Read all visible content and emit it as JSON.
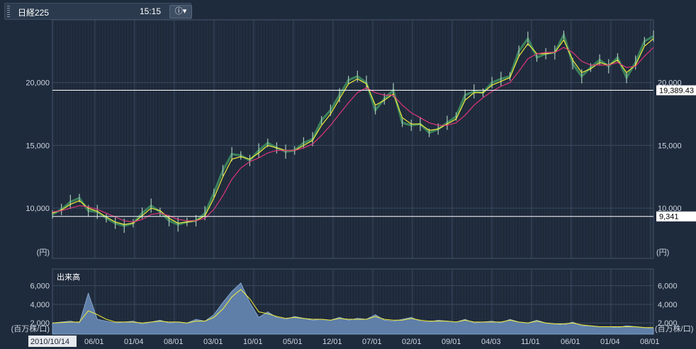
{
  "header": {
    "title": "日経225",
    "time": "15:15",
    "menu_icon": "info-dropdown-icon"
  },
  "colors": {
    "background": "#1e2b3c",
    "plot": "#1f2a3a",
    "grid": "#3a4a60",
    "ma_short": "#f2ee3a",
    "ma_long": "#e0357a",
    "volume_fill": "#5f7fa8"
  },
  "chart_data": [
    {
      "type": "line",
      "title": "",
      "ylabel": "(円)",
      "ylim": [
        6000,
        25000
      ],
      "y_ticks": [
        "20,000",
        "15,000",
        "10,000"
      ],
      "y_tick_values": [
        20000,
        15000,
        10000
      ],
      "x_ticks": [
        "2010/10/14",
        "06/01",
        "01/04",
        "08/01",
        "03/01",
        "10/01",
        "05/01",
        "12/01",
        "07/01",
        "02/01",
        "09/01",
        "04/03",
        "11/01",
        "06/01",
        "01/04",
        "08/01"
      ],
      "reference_lines": [
        {
          "label": "19,389.43",
          "value": 19389.43,
          "color": "#ffffff"
        },
        {
          "label": "9,341",
          "value": 9341,
          "color": "#ffffff"
        }
      ],
      "series": [
        {
          "name": "",
          "style": "price",
          "values": [
            9500,
            9900,
            10500,
            10800,
            9800,
            9700,
            9200,
            8800,
            8600,
            8800,
            9600,
            10200,
            9700,
            9000,
            8700,
            8900,
            9000,
            9600,
            11200,
            13000,
            14300,
            14200,
            13800,
            14600,
            15200,
            14800,
            14500,
            14600,
            15200,
            15500,
            17000,
            17800,
            19000,
            20200,
            20500,
            20000,
            17800,
            18700,
            19400,
            16800,
            16600,
            16700,
            16000,
            16300,
            16800,
            17300,
            19000,
            19300,
            19200,
            20000,
            20300,
            20500,
            22500,
            23500,
            22000,
            22300,
            22400,
            23800,
            21500,
            20500,
            21200,
            21800,
            21300,
            22000,
            20400,
            21600,
            23300,
            23700
          ]
        },
        {
          "name": "",
          "style": "ma-short",
          "values": [
            9600,
            9850,
            10300,
            10600,
            10000,
            9750,
            9300,
            8900,
            8700,
            8800,
            9400,
            10000,
            9800,
            9200,
            8800,
            8900,
            9000,
            9400,
            10800,
            12500,
            13900,
            14100,
            13900,
            14400,
            15000,
            14800,
            14600,
            14600,
            15000,
            15400,
            16600,
            17500,
            18700,
            19900,
            20300,
            19900,
            18200,
            18600,
            19100,
            17200,
            16700,
            16700,
            16200,
            16300,
            16700,
            17100,
            18600,
            19200,
            19200,
            19800,
            20100,
            20400,
            22100,
            23100,
            22300,
            22300,
            22400,
            23400,
            21800,
            20800,
            21100,
            21600,
            21400,
            21800,
            20800,
            21400,
            22900,
            23500
          ]
        },
        {
          "name": "",
          "style": "ma-long",
          "values": [
            9700,
            9800,
            10000,
            10200,
            10100,
            9900,
            9600,
            9300,
            9000,
            8900,
            9100,
            9500,
            9600,
            9400,
            9100,
            9000,
            9000,
            9200,
            9900,
            11000,
            12300,
            13200,
            13700,
            14000,
            14400,
            14600,
            14600,
            14600,
            14800,
            15100,
            15800,
            16600,
            17500,
            18400,
            19200,
            19600,
            19200,
            19000,
            19000,
            18200,
            17600,
            17200,
            16800,
            16600,
            16600,
            16800,
            17400,
            18200,
            18800,
            19300,
            19700,
            20000,
            20900,
            21900,
            22300,
            22400,
            22400,
            22800,
            22400,
            21700,
            21400,
            21400,
            21400,
            21600,
            21200,
            21300,
            22100,
            22800
          ]
        }
      ]
    },
    {
      "type": "area",
      "title": "出来高",
      "ylabel": "(百万株/口)",
      "ylim": [
        800,
        7800
      ],
      "y_ticks": [
        "6,000",
        "4,000",
        "2,000"
      ],
      "y_tick_values": [
        6000,
        4000,
        2000
      ],
      "series": [
        {
          "name": "",
          "style": "volume",
          "values": [
            2000,
            2100,
            2200,
            2000,
            5200,
            2400,
            2200,
            2000,
            2100,
            2200,
            1900,
            2100,
            2300,
            2000,
            2100,
            2000,
            2400,
            2200,
            2900,
            4200,
            5400,
            6300,
            4200,
            2600,
            3200,
            2600,
            2400,
            2700,
            2500,
            2300,
            2400,
            2300,
            2600,
            2300,
            2500,
            2400,
            2900,
            2300,
            2200,
            2400,
            2600,
            2200,
            2100,
            2300,
            2200,
            2100,
            2400,
            2000,
            2100,
            2200,
            2000,
            2400,
            2100,
            2000,
            2300,
            2000,
            1900,
            1800,
            2100,
            1700,
            1700,
            1600,
            1600,
            1500,
            1700,
            1600,
            1500,
            1400
          ]
        },
        {
          "name": "",
          "style": "ma-short",
          "values": [
            2000,
            2050,
            2100,
            2100,
            3300,
            2900,
            2400,
            2100,
            2100,
            2100,
            2000,
            2100,
            2200,
            2100,
            2100,
            2000,
            2200,
            2200,
            2600,
            3500,
            4800,
            5600,
            4600,
            3200,
            3000,
            2700,
            2500,
            2600,
            2500,
            2400,
            2400,
            2300,
            2500,
            2400,
            2400,
            2400,
            2700,
            2400,
            2300,
            2300,
            2500,
            2300,
            2200,
            2200,
            2200,
            2100,
            2300,
            2100,
            2100,
            2100,
            2100,
            2300,
            2100,
            2000,
            2200,
            2000,
            1900,
            1900,
            2000,
            1800,
            1700,
            1600,
            1600,
            1600,
            1600,
            1600,
            1500,
            1500
          ]
        }
      ]
    }
  ]
}
